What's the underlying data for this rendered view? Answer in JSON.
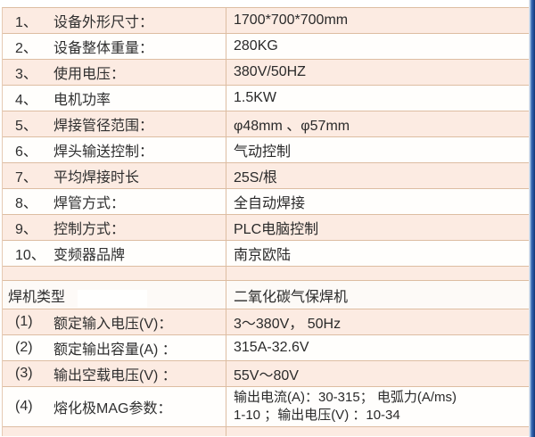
{
  "colors": {
    "row_pink": "#fcebe2",
    "row_white": "#fffefc",
    "grid_border": "#ddbda2",
    "accent_blue": "#1e4a94",
    "text": "#2f2f2f"
  },
  "table": {
    "rows": [
      {
        "num": "1、",
        "label": "设备外形尺寸：",
        "value": "1700*700*700mm"
      },
      {
        "num": "2、",
        "label": "设备整体重量：",
        "value": "280KG"
      },
      {
        "num": "3、",
        "label": "使用电压：",
        "value": "380V/50HZ"
      },
      {
        "num": "4、",
        "label": "电机功率",
        "value": "1.5KW"
      },
      {
        "num": "5、",
        "label": "焊接管径范围：",
        "value": "φ48mm 、φ57mm"
      },
      {
        "num": "6、",
        "label": "焊头输送控制：",
        "value": "气动控制"
      },
      {
        "num": "7、",
        "label": "平均焊接时长",
        "value": "25S/根"
      },
      {
        "num": "8、",
        "label": "焊管方式：",
        "value": "全自动焊接"
      },
      {
        "num": "9、",
        "label": "控制方式：",
        "value": "PLC电脑控制"
      },
      {
        "num": "10、",
        "label": "变频器品牌",
        "value": "南京欧陆"
      }
    ],
    "section": {
      "label": "焊机类型",
      "value": "二氧化碳气保焊机"
    },
    "sub_rows": [
      {
        "num": "(1)",
        "label": "额定输入电压(V)：",
        "value": "3～380V，  50Hz"
      },
      {
        "num": "(2)",
        "label": "额定输出容量(A) ：",
        "value": "315A-32.6V"
      },
      {
        "num": "(3)",
        "label": "输出空载电压(V) ：",
        "value": "55V～80V"
      },
      {
        "num": "(4)",
        "label": "熔化极MAG参数：",
        "value": "输出电流(A)：30-315；  电弧力(A/ms)\n1-10 ；输出电压(V) ：10-34"
      }
    ]
  }
}
